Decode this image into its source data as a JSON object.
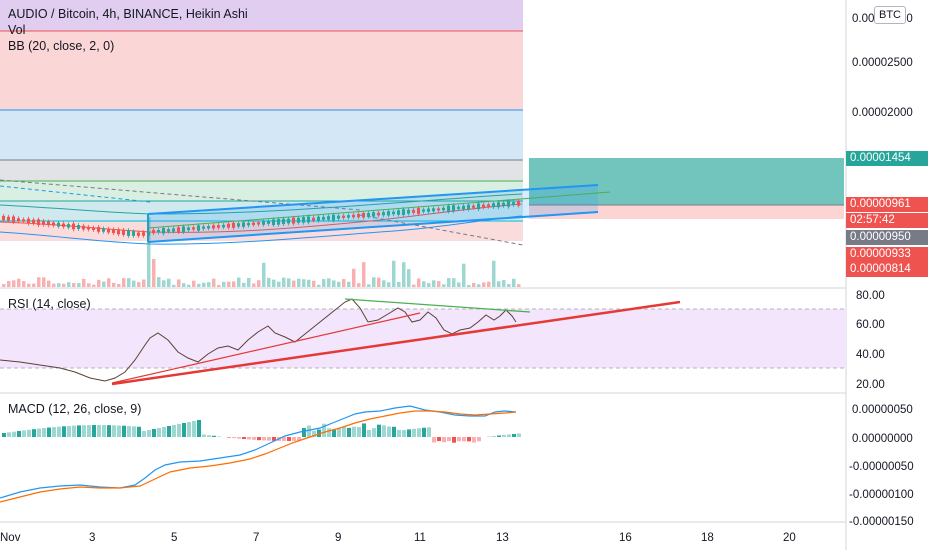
{
  "header": {
    "symbol_line": "AUDIO / Bitcoin, 4h, BINANCE, Heikin Ashi",
    "vol_label": "Vol",
    "bb_label": "BB (20, close, 2, 0)"
  },
  "currency_badge": "BTC",
  "price_axis": {
    "ticks": [
      "0.00003000",
      "0.00002500",
      "0.00002000"
    ],
    "tags": [
      {
        "text": "0.00001454",
        "color": "#26a69a"
      },
      {
        "text": "0.00000961",
        "color": "#ef5350"
      },
      {
        "text": "02:57:42",
        "color": "#ef5350"
      },
      {
        "text": "0.00000950",
        "color": "#787b86"
      },
      {
        "text": "0.00000933",
        "color": "#ef5350"
      },
      {
        "text": "0.00000814",
        "color": "#ef5350"
      }
    ]
  },
  "rsi": {
    "label": "RSI (14, close)",
    "ticks": [
      "80.00",
      "60.00",
      "40.00",
      "20.00"
    ]
  },
  "macd": {
    "label": "MACD (12, 26, close, 9)",
    "ticks": [
      "0.00000050",
      "0.00000000",
      "-0.00000050",
      "-0.00000100",
      "-0.00000150"
    ]
  },
  "time_axis": {
    "ticks": [
      "Nov",
      "3",
      "5",
      "7",
      "9",
      "11",
      "13",
      "16",
      "18",
      "20"
    ]
  },
  "colors": {
    "up": "#26a69a",
    "down": "#ef5350",
    "trendline": "#2196f3",
    "rsi_line": "#5d4037",
    "rsi_band": "#f3e5fb",
    "macd_line": "#2196f3",
    "signal_line": "#ff6d00"
  }
}
